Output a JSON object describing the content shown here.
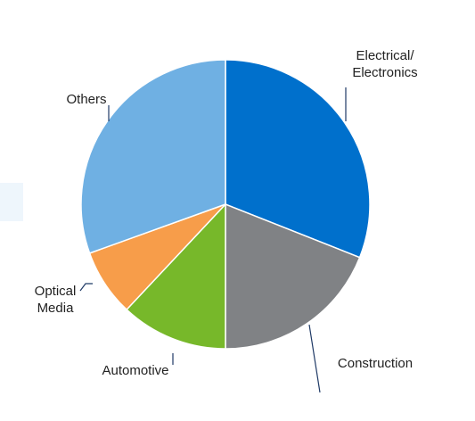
{
  "chart_data": {
    "type": "pie",
    "categories": [
      "Electrical/\nElectronics",
      "Construction",
      "Automotive",
      "Optical\nMedia",
      "Others"
    ],
    "values": [
      31,
      19,
      12,
      7.5,
      30.5
    ],
    "colors": [
      "#0070cc",
      "#808285",
      "#77b82a",
      "#f79d4a",
      "#6fb0e3"
    ]
  }
}
